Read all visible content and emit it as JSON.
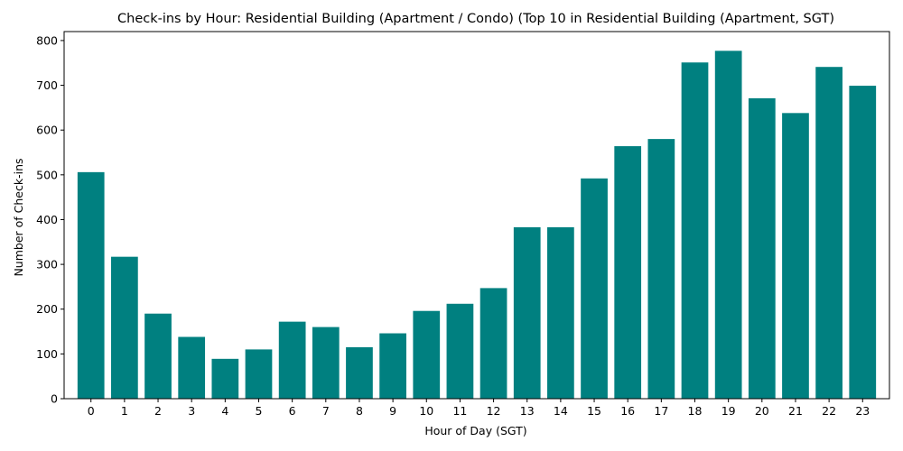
{
  "chart_data": {
    "type": "bar",
    "title": "Check-ins by Hour: Residential Building (Apartment / Condo) (Top 10 in Residential Building (Apartment, SGT)",
    "xlabel": "Hour of Day (SGT)",
    "ylabel": "Number of Check-ins",
    "categories": [
      "0",
      "1",
      "2",
      "3",
      "4",
      "5",
      "6",
      "7",
      "8",
      "9",
      "10",
      "11",
      "12",
      "13",
      "14",
      "15",
      "16",
      "17",
      "18",
      "19",
      "20",
      "21",
      "22",
      "23"
    ],
    "values": [
      506,
      317,
      190,
      138,
      89,
      110,
      172,
      160,
      115,
      146,
      196,
      212,
      247,
      383,
      383,
      492,
      564,
      580,
      751,
      777,
      671,
      638,
      741,
      699
    ],
    "ylim": [
      0,
      820
    ],
    "yticks": [
      0,
      100,
      200,
      300,
      400,
      500,
      600,
      700,
      800
    ],
    "bar_color": "#008080",
    "grid": false,
    "legend": "none"
  }
}
